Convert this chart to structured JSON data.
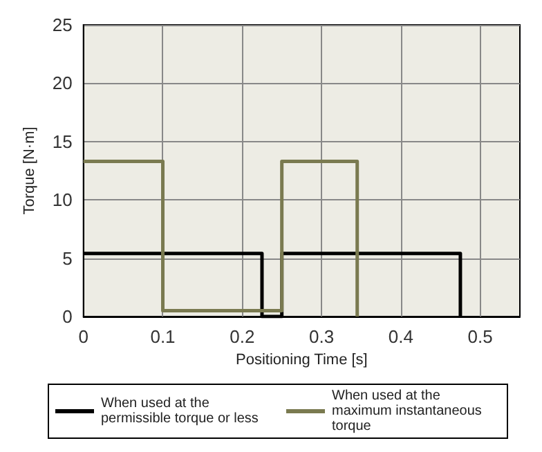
{
  "chart_data": {
    "type": "line",
    "xlabel": "Positioning Time [s]",
    "ylabel": "Torque [N·m]",
    "series": [
      {
        "name": "When used at the permissible torque or less",
        "color": "#000000",
        "x": [
          0,
          0.225,
          0.225,
          0.25,
          0.25,
          0.475,
          0.475
        ],
        "values": [
          5.4,
          5.4,
          0,
          0,
          5.4,
          5.4,
          0
        ]
      },
      {
        "name": "When used at the maximum instantaneous torque",
        "color": "#7a7a50",
        "x": [
          0,
          0.1,
          0.1,
          0.25,
          0.25,
          0.345,
          0.345
        ],
        "values": [
          13.3,
          13.3,
          0.5,
          0.5,
          13.3,
          13.3,
          0
        ]
      }
    ],
    "xlim": [
      0,
      0.55
    ],
    "xticks": [
      0,
      0.1,
      0.2,
      0.3,
      0.4,
      0.5
    ],
    "ylim": [
      0,
      25
    ],
    "yticks": [
      0,
      5,
      10,
      15,
      20,
      25
    ],
    "grid": true,
    "legend": "bottom",
    "marker": "none",
    "line_style": "solid"
  }
}
